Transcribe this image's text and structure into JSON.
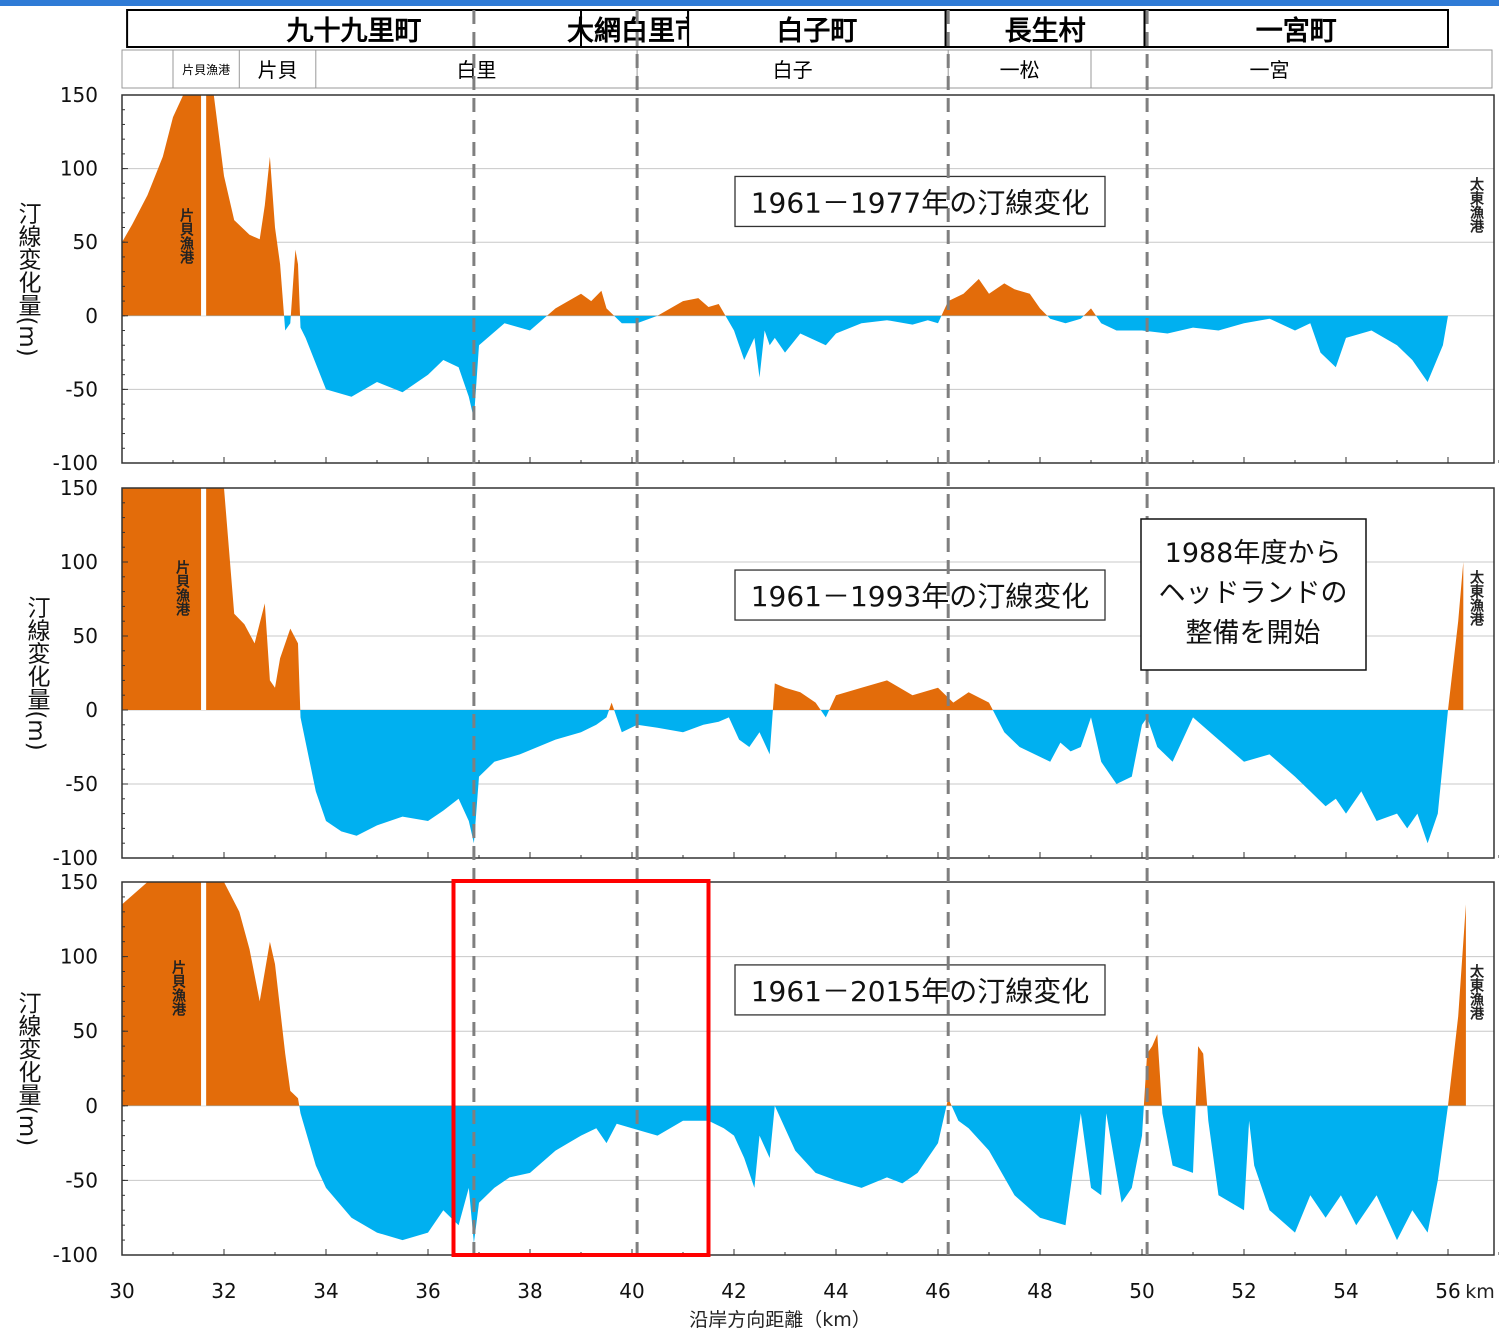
{
  "header": {
    "municipalities": [
      {
        "name": "九十九里町",
        "x0": 30.1,
        "x1": 39.0
      },
      {
        "name": "大網白里市",
        "x0": 39.0,
        "x1": 41.1
      },
      {
        "name": "白子町",
        "x0": 41.1,
        "x1": 46.15
      },
      {
        "name": "長生村",
        "x0": 46.15,
        "x1": 50.05
      },
      {
        "name": "一宮町",
        "x0": 50.05,
        "x1": 56.0
      }
    ],
    "districts": [
      {
        "name": "片貝漁港",
        "x0": 31.0,
        "x1": 32.3,
        "small": true
      },
      {
        "name": "片貝",
        "x0": 32.3,
        "x1": 33.8
      },
      {
        "name": "白里",
        "x0": 33.8,
        "x1": 40.1
      },
      {
        "name": "白子",
        "x0": 40.1,
        "x1": 46.2
      },
      {
        "name": "一松",
        "x0": 46.2,
        "x1": 49.0
      },
      {
        "name": "一宮",
        "x0": 49.0,
        "x1": 56.0
      }
    ]
  },
  "chart_data": {
    "type": "area",
    "xlabel": "沿岸方向距離（km）",
    "x_unit": "km",
    "ylabel": "汀線変化量(m)",
    "xlim": [
      30,
      57
    ],
    "ylim": [
      -100,
      150
    ],
    "xticks": [
      30,
      32,
      34,
      36,
      38,
      40,
      42,
      44,
      46,
      48,
      50,
      52,
      54,
      56
    ],
    "yticks": [
      150,
      100,
      50,
      0,
      -50,
      -100
    ],
    "boundaries_km": [
      36.9,
      40.1,
      46.2,
      50.1
    ],
    "colors": {
      "accretion": "#e36c0a",
      "erosion": "#00b0f0",
      "highlight": "#ff0000",
      "boundary": "#7f7f7f"
    },
    "annotation_box": {
      "lines": [
        "1988年度から",
        "ヘッドランドの",
        "整備を開始"
      ]
    },
    "highlight_range_km": [
      36.5,
      41.5
    ],
    "panels": [
      {
        "title": "1961－1977年の汀線変化",
        "left_port_label": "片貝漁港",
        "right_port_label": "太東漁港",
        "port_gap_km": [
          31.55,
          31.65
        ],
        "x": [
          30.0,
          30.2,
          30.5,
          30.8,
          31.0,
          31.2,
          31.4,
          31.55,
          31.65,
          31.8,
          32.0,
          32.2,
          32.5,
          32.7,
          32.8,
          32.9,
          33.0,
          33.1,
          33.2,
          33.3,
          33.4,
          33.45,
          33.5,
          33.6,
          34.0,
          34.5,
          35.0,
          35.5,
          36.0,
          36.3,
          36.6,
          36.8,
          36.9,
          37.0,
          37.5,
          38.0,
          38.5,
          39.0,
          39.2,
          39.4,
          39.5,
          39.8,
          40.1,
          40.5,
          41.0,
          41.3,
          41.5,
          41.7,
          42.0,
          42.2,
          42.4,
          42.5,
          42.6,
          42.7,
          42.8,
          43.0,
          43.3,
          43.8,
          44.0,
          44.5,
          45.0,
          45.5,
          45.8,
          46.0,
          46.2,
          46.5,
          46.8,
          47.0,
          47.3,
          47.5,
          47.8,
          48.0,
          48.2,
          48.5,
          48.8,
          49.0,
          49.2,
          49.5,
          50.0,
          50.5,
          51.0,
          51.5,
          52.0,
          52.5,
          53.0,
          53.3,
          53.5,
          53.8,
          54.0,
          54.5,
          55.0,
          55.3,
          55.6,
          55.9,
          56.0
        ],
        "y": [
          50,
          62,
          82,
          108,
          135,
          150,
          150,
          150,
          150,
          150,
          95,
          65,
          55,
          52,
          75,
          108,
          60,
          35,
          -10,
          -5,
          45,
          35,
          -8,
          -15,
          -50,
          -55,
          -45,
          -52,
          -40,
          -30,
          -35,
          -55,
          -70,
          -20,
          -5,
          -10,
          5,
          15,
          10,
          17,
          5,
          -5,
          -5,
          0,
          10,
          12,
          6,
          8,
          -10,
          -30,
          -15,
          -42,
          -10,
          -20,
          -15,
          -25,
          -12,
          -20,
          -12,
          -5,
          -3,
          -6,
          -3,
          -5,
          10,
          15,
          25,
          15,
          22,
          18,
          15,
          5,
          -2,
          -5,
          -2,
          5,
          -5,
          -10,
          -10,
          -12,
          -8,
          -10,
          -5,
          -2,
          -10,
          -5,
          -25,
          -35,
          -15,
          -10,
          -20,
          -30,
          -45,
          -20,
          0
        ]
      },
      {
        "title": "1961－1993年の汀線変化",
        "left_port_label": "片貝漁港",
        "right_port_label": "太東漁港",
        "port_gap_km": [
          31.55,
          31.65
        ],
        "x": [
          30.0,
          30.5,
          31.0,
          31.55,
          31.65,
          32.0,
          32.2,
          32.4,
          32.6,
          32.8,
          32.9,
          33.0,
          33.1,
          33.3,
          33.45,
          33.5,
          33.8,
          34.0,
          34.3,
          34.6,
          35.0,
          35.5,
          36.0,
          36.3,
          36.6,
          36.8,
          36.9,
          37.0,
          37.3,
          37.8,
          38.5,
          39.0,
          39.3,
          39.5,
          39.6,
          39.8,
          40.1,
          40.5,
          41.0,
          41.4,
          41.7,
          41.9,
          42.1,
          42.3,
          42.5,
          42.7,
          42.8,
          43.0,
          43.3,
          43.6,
          43.8,
          44.0,
          44.5,
          45.0,
          45.5,
          46.0,
          46.3,
          46.6,
          47.0,
          47.3,
          47.6,
          47.9,
          48.2,
          48.4,
          48.6,
          48.8,
          49.0,
          49.2,
          49.5,
          49.8,
          50.0,
          50.1,
          50.3,
          50.6,
          51.0,
          51.5,
          52.0,
          52.5,
          53.0,
          53.3,
          53.6,
          53.8,
          54.0,
          54.3,
          54.6,
          55.0,
          55.2,
          55.4,
          55.6,
          55.8,
          56.0,
          56.2,
          56.3
        ],
        "y": [
          150,
          150,
          150,
          150,
          150,
          150,
          65,
          58,
          45,
          72,
          20,
          15,
          35,
          55,
          45,
          -5,
          -55,
          -75,
          -82,
          -85,
          -78,
          -72,
          -75,
          -68,
          -60,
          -75,
          -90,
          -45,
          -35,
          -30,
          -20,
          -15,
          -10,
          -5,
          5,
          -15,
          -10,
          -12,
          -15,
          -10,
          -8,
          -5,
          -20,
          -25,
          -15,
          -30,
          18,
          15,
          12,
          5,
          -5,
          10,
          15,
          20,
          10,
          15,
          5,
          12,
          5,
          -15,
          -25,
          -30,
          -35,
          -22,
          -28,
          -25,
          -5,
          -35,
          -50,
          -45,
          -10,
          -5,
          -25,
          -35,
          -5,
          -20,
          -35,
          -30,
          -45,
          -55,
          -65,
          -60,
          -70,
          -55,
          -75,
          -70,
          -80,
          -70,
          -90,
          -70,
          0,
          60,
          100
        ]
      },
      {
        "title": "1961－2015年の汀線変化",
        "left_port_label": "片貝漁港",
        "right_port_label": "太東漁港",
        "port_gap_km": [
          31.55,
          31.65
        ],
        "x": [
          30.0,
          30.5,
          31.0,
          31.55,
          31.65,
          32.0,
          32.3,
          32.5,
          32.7,
          32.9,
          33.0,
          33.2,
          33.3,
          33.45,
          33.5,
          33.8,
          34.0,
          34.5,
          35.0,
          35.5,
          36.0,
          36.3,
          36.6,
          36.8,
          36.9,
          37.0,
          37.3,
          37.6,
          38.0,
          38.5,
          39.0,
          39.3,
          39.5,
          39.7,
          40.0,
          40.5,
          41.0,
          41.5,
          41.8,
          42.0,
          42.2,
          42.4,
          42.5,
          42.7,
          42.8,
          43.2,
          43.6,
          44.0,
          44.5,
          45.0,
          45.3,
          45.6,
          45.8,
          46.0,
          46.2,
          46.4,
          46.6,
          47.0,
          47.5,
          48.0,
          48.5,
          48.8,
          49.0,
          49.2,
          49.3,
          49.6,
          49.8,
          50.0,
          50.1,
          50.2,
          50.3,
          50.4,
          50.6,
          51.0,
          51.1,
          51.2,
          51.3,
          51.5,
          52.0,
          52.1,
          52.2,
          52.5,
          53.0,
          53.3,
          53.6,
          53.9,
          54.2,
          54.6,
          55.0,
          55.3,
          55.6,
          55.8,
          56.0,
          56.2,
          56.35
        ],
        "y": [
          135,
          150,
          150,
          150,
          150,
          150,
          130,
          105,
          70,
          110,
          95,
          35,
          10,
          5,
          -5,
          -40,
          -55,
          -75,
          -85,
          -90,
          -85,
          -70,
          -80,
          -55,
          -92,
          -65,
          -55,
          -48,
          -45,
          -30,
          -20,
          -15,
          -25,
          -12,
          -15,
          -20,
          -10,
          -10,
          -15,
          -20,
          -35,
          -55,
          -20,
          -35,
          0,
          -30,
          -45,
          -50,
          -55,
          -48,
          -52,
          -45,
          -35,
          -25,
          5,
          -10,
          -15,
          -30,
          -60,
          -75,
          -80,
          -5,
          -55,
          -60,
          -5,
          -65,
          -55,
          -20,
          35,
          40,
          48,
          -5,
          -40,
          -45,
          40,
          35,
          -10,
          -60,
          -70,
          -10,
          -40,
          -70,
          -85,
          -60,
          -75,
          -60,
          -80,
          -60,
          -90,
          -70,
          -85,
          -50,
          0,
          60,
          135
        ]
      }
    ]
  }
}
